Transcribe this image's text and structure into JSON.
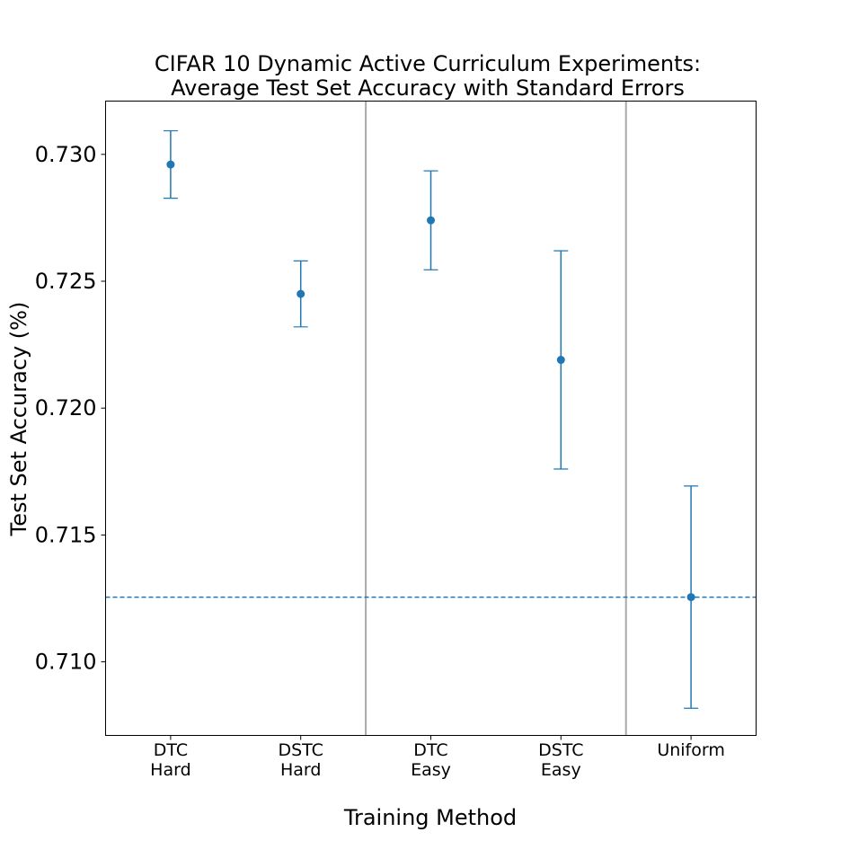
{
  "chart_data": {
    "type": "errorbar",
    "title": [
      "CIFAR 10 Dynamic Active Curriculum Experiments:",
      "Average Test Set Accuracy with Standard Errors"
    ],
    "xlabel": "Training Method",
    "ylabel": "Test Set Accuracy (%)",
    "categories": [
      [
        "DTC",
        "Hard"
      ],
      [
        "DSTC",
        "Hard"
      ],
      [
        "DTC",
        "Easy"
      ],
      [
        "DSTC",
        "Easy"
      ],
      [
        "Uniform"
      ]
    ],
    "values": [
      0.7296,
      0.7245,
      0.7274,
      0.7219,
      0.71255
    ],
    "errors": [
      0.00133,
      0.0013,
      0.00195,
      0.0043,
      0.00438
    ],
    "ylim": [
      0.7071,
      0.7321
    ],
    "yticks": [
      0.71,
      0.715,
      0.72,
      0.725,
      0.73
    ],
    "ytick_labels": [
      "0.710",
      "0.715",
      "0.720",
      "0.725",
      "0.730"
    ],
    "baseline": 0.71255,
    "separators_between": [
      2,
      4
    ],
    "grid": false,
    "colors": {
      "series": "#1f77b4",
      "separator": "#a9a9a9",
      "axis": "#000000"
    }
  }
}
